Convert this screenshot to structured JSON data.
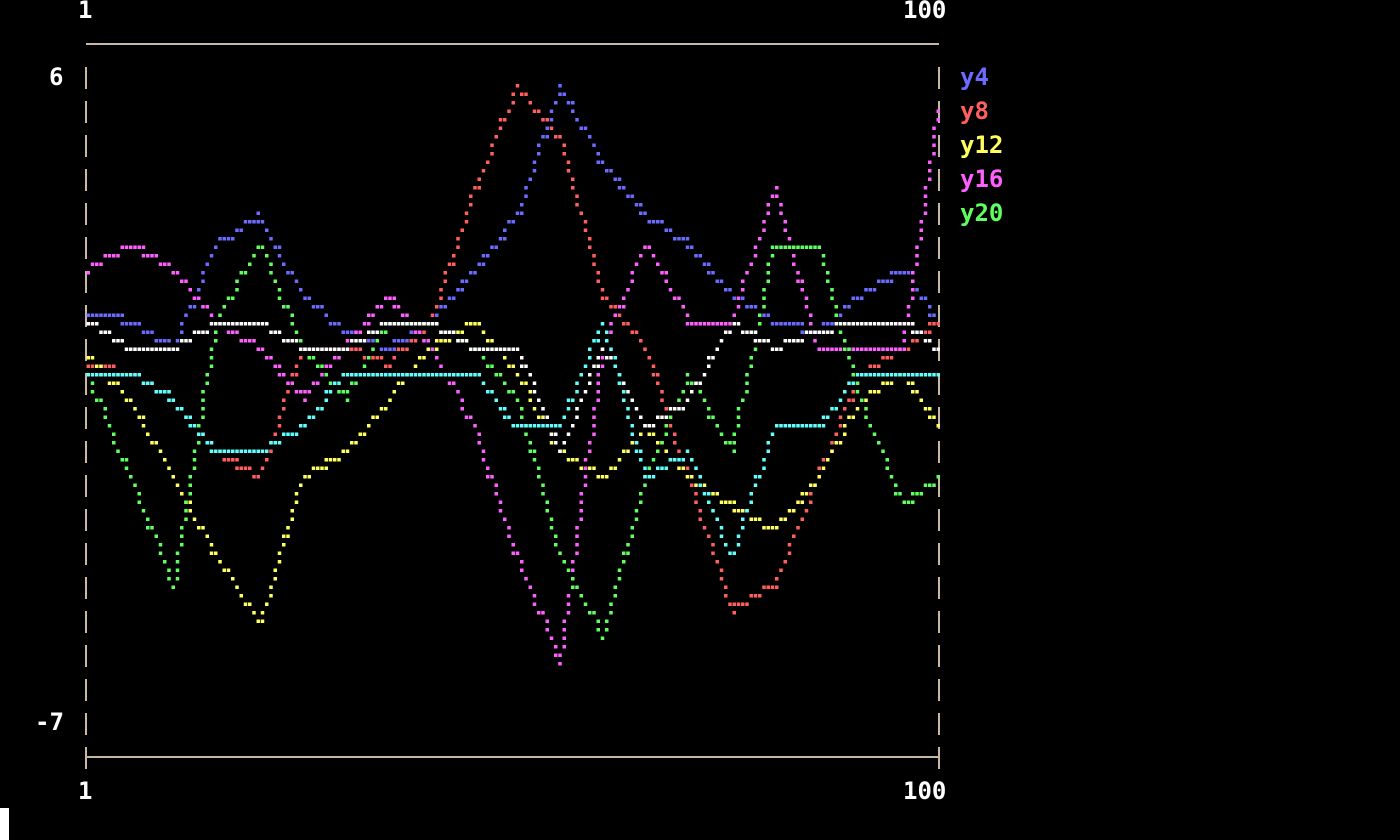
{
  "chart_data": {
    "type": "line",
    "title": "",
    "xlabel": "",
    "ylabel": "",
    "xlim": [
      1,
      100
    ],
    "ylim": [
      -7,
      6
    ],
    "x_tick_labels": [
      "1",
      "100"
    ],
    "y_tick_labels": [
      "6",
      "-7"
    ],
    "grid": false,
    "legend_placement": "right",
    "x": [
      1,
      6,
      11,
      16,
      21,
      26,
      31,
      36,
      41,
      46,
      51,
      56,
      61,
      66,
      71,
      76,
      81,
      86,
      91,
      96,
      100
    ],
    "series": [
      {
        "name": "y4",
        "color": "#6b6bff",
        "values": [
          1.2,
          1.0,
          0.5,
          2.5,
          3.0,
          1.5,
          0.8,
          0.5,
          1.0,
          2.0,
          3.0,
          5.5,
          4.0,
          3.0,
          2.5,
          1.5,
          1.0,
          0.8,
          1.5,
          2.0,
          1.0
        ]
      },
      {
        "name": "y8",
        "color": "#ff5f5f",
        "values": [
          0.2,
          0,
          -0.5,
          -1.5,
          -2.0,
          0.5,
          0.5,
          0.2,
          1.0,
          3.5,
          5.5,
          4.5,
          1.5,
          0.5,
          -2.0,
          -4.5,
          -4.0,
          -2.0,
          0.0,
          0.5,
          1.0
        ]
      },
      {
        "name": "y12",
        "color": "#ffff5f",
        "values": [
          0.3,
          -0.5,
          -2.0,
          -3.5,
          -4.8,
          -2.0,
          -1.5,
          -0.5,
          0.5,
          1.0,
          0.0,
          -1.5,
          -2.0,
          -1.0,
          -2.0,
          -2.5,
          -3.0,
          -2.0,
          -0.5,
          0,
          -1.0
        ]
      },
      {
        "name": "y16",
        "color": "#ff5fff",
        "values": [
          2.0,
          2.5,
          2.0,
          1.0,
          0.5,
          -0.5,
          0.5,
          1.5,
          0.5,
          -1.0,
          -3.5,
          -5.5,
          0.5,
          2.5,
          1.0,
          1.0,
          3.5,
          0.5,
          0.5,
          0.5,
          5.0
        ]
      },
      {
        "name": "y20",
        "color": "#5fff5f",
        "values": [
          0,
          -2.0,
          -4.0,
          1.0,
          2.5,
          0.5,
          -0.5,
          1.0,
          1.0,
          0.5,
          -0.5,
          -3.5,
          -5.0,
          -2.0,
          0,
          -1.5,
          2.5,
          2.5,
          -0.5,
          -2.5,
          -2.0
        ]
      },
      {
        "color": "#ffffff",
        "values": [
          1.0,
          0.5,
          0.5,
          1.0,
          1.0,
          0.5,
          0.5,
          1.0,
          1.0,
          0.5,
          0.5,
          -1.5,
          0.5,
          -1.0,
          -0.5,
          1.0,
          0.5,
          0.8,
          1.0,
          1.0,
          0.5
        ]
      },
      {
        "color": "#5fffff",
        "values": [
          0,
          0,
          -0.5,
          -1.5,
          -1.5,
          -1.0,
          0,
          0,
          0,
          0,
          -1,
          -1,
          1,
          -2,
          -1.5,
          -3.5,
          -1,
          -1,
          0,
          0,
          0
        ]
      }
    ]
  },
  "frame_color": "#c8b8a0"
}
